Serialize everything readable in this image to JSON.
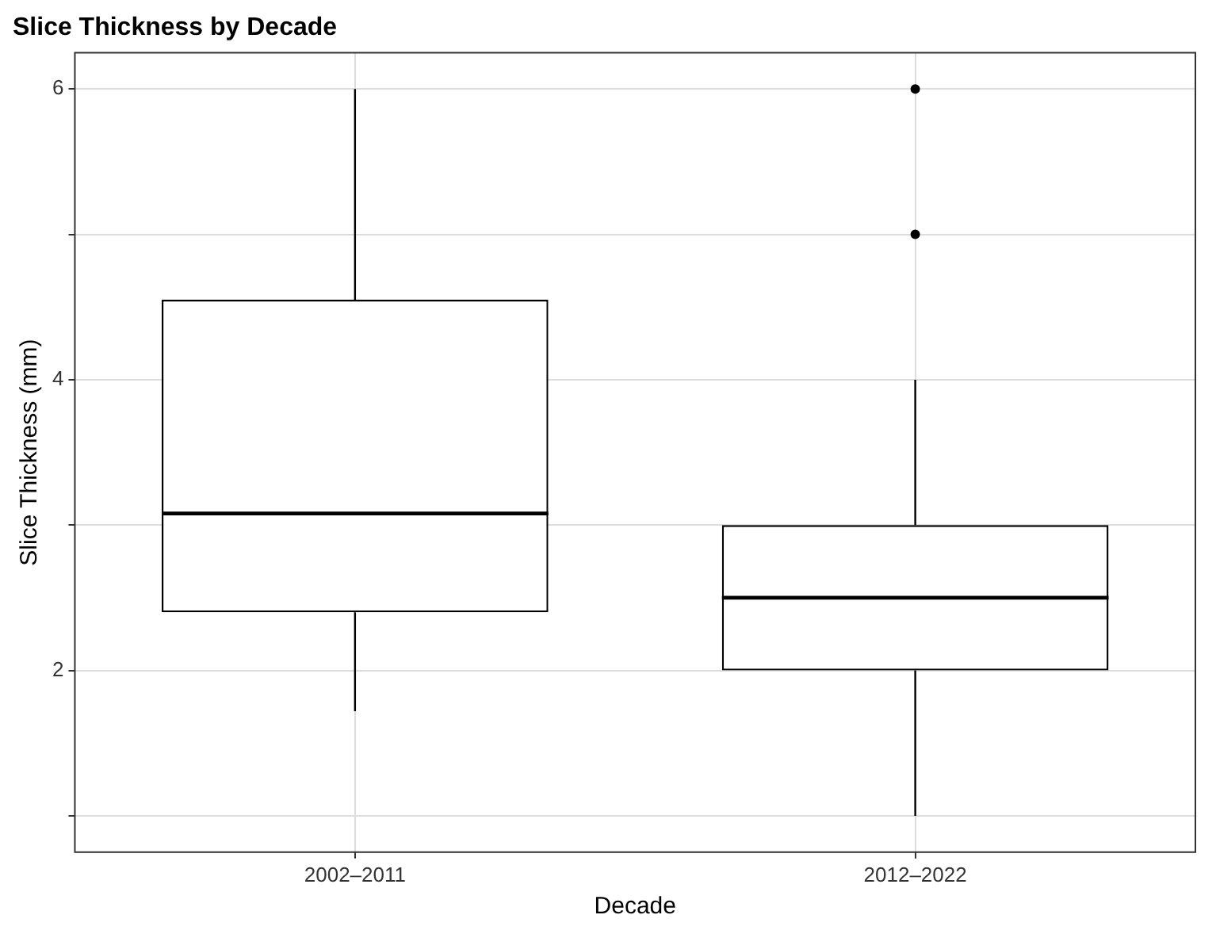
{
  "chart_data": {
    "type": "box",
    "title": "Slice Thickness by Decade",
    "xlabel": "Decade",
    "ylabel": "Slice Thickness (mm)",
    "categories": [
      "2002–2011",
      "2012–2022"
    ],
    "boxes": [
      {
        "low": 1.72,
        "q1": 2.4,
        "median": 3.08,
        "q3": 4.55,
        "high": 6
      },
      {
        "low": 1,
        "q1": 2,
        "median": 2.5,
        "q3": 3,
        "high": 4,
        "outliers": [
          5,
          6
        ]
      }
    ],
    "ylim": [
      0.75,
      6.25
    ],
    "yticks": [
      {
        "value": 1,
        "label": null
      },
      2,
      {
        "value": 3,
        "label": null
      },
      4,
      {
        "value": 5,
        "label": null
      },
      6
    ],
    "grid": true
  }
}
